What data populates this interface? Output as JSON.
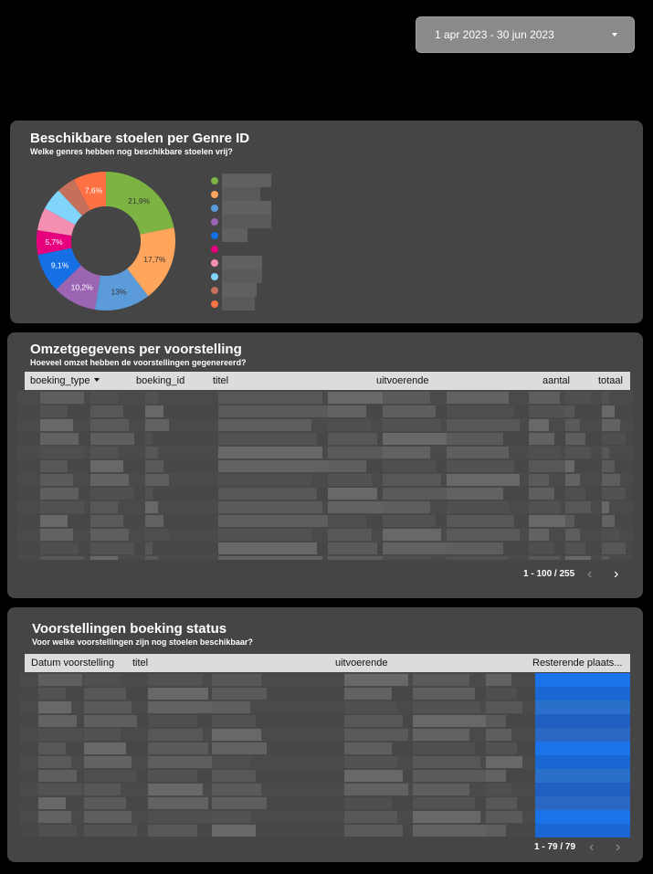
{
  "date_range": {
    "label": "1 apr 2023 - 30 jun 2023"
  },
  "genre_card": {
    "title": "Beschikbare stoelen per Genre ID",
    "subtitle": "Welke genres hebben nog beschikbare stoelen vrij?",
    "chart_data": {
      "type": "pie",
      "donut": true,
      "slices": [
        {
          "value": 21.9,
          "label": "21,9%",
          "color": "#7cb342"
        },
        {
          "value": 17.7,
          "label": "17,7%",
          "color": "#ffa65c"
        },
        {
          "value": 13.0,
          "label": "13%",
          "color": "#5b9bd9"
        },
        {
          "value": 10.2,
          "label": "10,2%",
          "color": "#9c65b3"
        },
        {
          "value": 9.1,
          "label": "9,1%",
          "color": "#1570e6"
        },
        {
          "value": 5.7,
          "label": "5,7%",
          "color": "#e6007e"
        },
        {
          "value": 5.3,
          "label": "",
          "color": "#f48fb1"
        },
        {
          "value": 5.2,
          "label": "",
          "color": "#81d4fa"
        },
        {
          "value": 4.4,
          "label": "",
          "color": "#c5705a"
        },
        {
          "value": 7.6,
          "label": "7,6%",
          "color": "#ff7043"
        }
      ],
      "legend_placement": "right"
    }
  },
  "revenue_card": {
    "title": "Omzetgegevens per voorstelling",
    "subtitle": "Hoeveel omzet hebben de voorstellingen gegenereerd?",
    "columns": [
      "boeking_type",
      "boeking_id",
      "titel",
      "uitvoerende",
      "aantal",
      "totaal"
    ],
    "pager": "1 - 100 / 255",
    "prev_icon": "chevron-left-icon",
    "next_icon": "chevron-right-icon"
  },
  "status_card": {
    "title": "Voorstellingen boeking status",
    "subtitle": "Voor welke voorstellingen zijn nog stoelen beschikbaar?",
    "columns": [
      "Datum voorstelling",
      "titel",
      "uitvoerende",
      "Resterende plaats..."
    ],
    "pager": "1 - 79 / 79",
    "bar_color": "#1a73e8"
  }
}
